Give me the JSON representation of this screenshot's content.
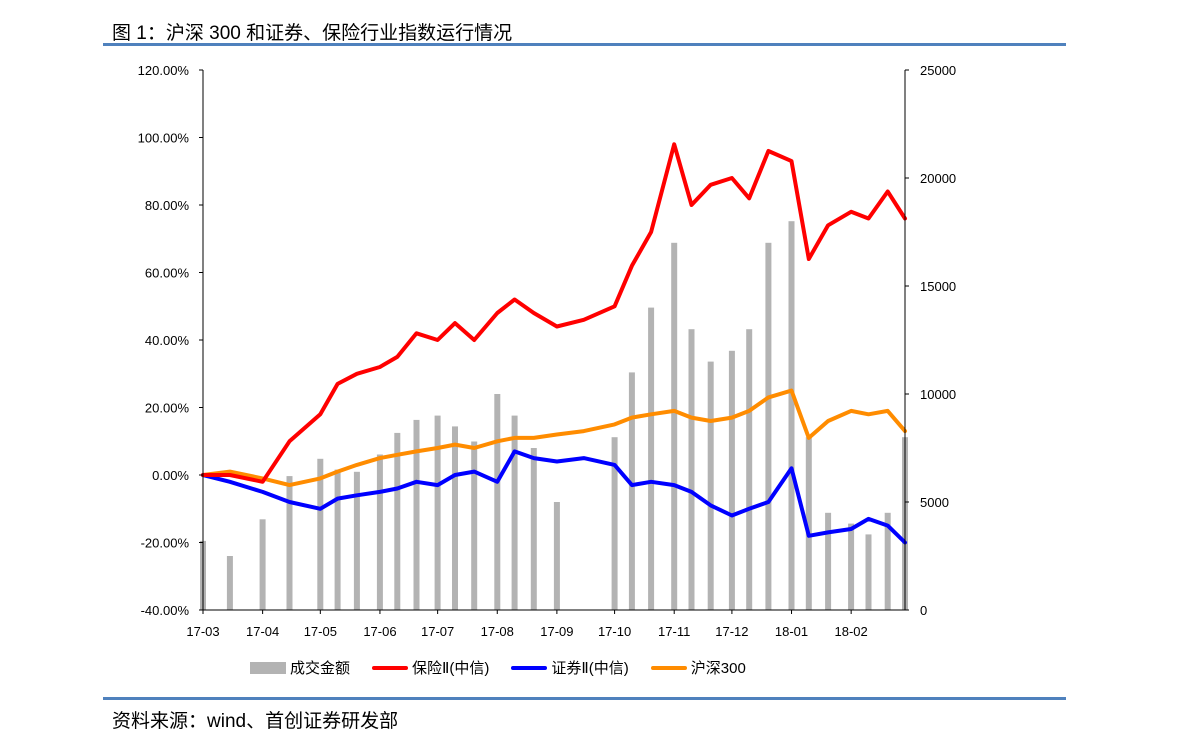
{
  "figure_title": "图 1：沪深 300 和证券、保险行业指数运行情况",
  "source_text": "资料来源：wind、首创证券研发部",
  "colors": {
    "rule": "#4f81bd",
    "volume": "#b3b3b3",
    "insurance": "#ff0000",
    "securities": "#0000ff",
    "hs300": "#ff8c00"
  },
  "chart_data": {
    "type": "line",
    "x_tick_labels": [
      "17-03",
      "17-04",
      "17-05",
      "17-06",
      "17-07",
      "17-08",
      "17-09",
      "17-10",
      "17-11",
      "17-12",
      "18-01",
      "18-02"
    ],
    "y_left_tick_labels": [
      "120.00%",
      "100.00%",
      "80.00%",
      "60.00%",
      "40.00%",
      "20.00%",
      "0.00%",
      "-20.00%",
      "-40.00%"
    ],
    "y_right_tick_labels": [
      "25000",
      "20000",
      "15000",
      "10000",
      "5000",
      "0"
    ],
    "y_left_range": [
      -40,
      120
    ],
    "y_right_range": [
      0,
      25000
    ],
    "legend": [
      "成交金额",
      "保险Ⅱ(中信)",
      "证券Ⅱ(中信)",
      "沪深300"
    ],
    "grid": false,
    "series": [
      {
        "name": "保险Ⅱ(中信)",
        "axis": "left",
        "unit": "%",
        "x": [
          "17-03-01",
          "17-03-15",
          "17-04-01",
          "17-04-15",
          "17-05-01",
          "17-05-10",
          "17-05-20",
          "17-06-01",
          "17-06-10",
          "17-06-20",
          "17-07-01",
          "17-07-10",
          "17-07-20",
          "17-08-01",
          "17-08-10",
          "17-08-20",
          "17-09-01",
          "17-09-15",
          "17-10-01",
          "17-10-10",
          "17-10-20",
          "17-11-01",
          "17-11-10",
          "17-11-20",
          "17-12-01",
          "17-12-10",
          "17-12-20",
          "18-01-01",
          "18-01-10",
          "18-01-20",
          "18-02-01",
          "18-02-10",
          "18-02-20",
          "18-03-01"
        ],
        "values": [
          0,
          0,
          -2,
          10,
          18,
          27,
          30,
          32,
          35,
          42,
          40,
          45,
          40,
          48,
          52,
          48,
          44,
          46,
          50,
          62,
          72,
          98,
          80,
          86,
          88,
          82,
          96,
          93,
          64,
          74,
          78,
          76,
          84,
          76
        ]
      },
      {
        "name": "证券Ⅱ(中信)",
        "axis": "left",
        "unit": "%",
        "x": [
          "17-03-01",
          "17-03-15",
          "17-04-01",
          "17-04-15",
          "17-05-01",
          "17-05-10",
          "17-05-20",
          "17-06-01",
          "17-06-10",
          "17-06-20",
          "17-07-01",
          "17-07-10",
          "17-07-20",
          "17-08-01",
          "17-08-10",
          "17-08-20",
          "17-09-01",
          "17-09-15",
          "17-10-01",
          "17-10-10",
          "17-10-20",
          "17-11-01",
          "17-11-10",
          "17-11-20",
          "17-12-01",
          "17-12-10",
          "17-12-20",
          "18-01-01",
          "18-01-10",
          "18-01-20",
          "18-02-01",
          "18-02-10",
          "18-02-20",
          "18-03-01"
        ],
        "values": [
          0,
          -2,
          -5,
          -8,
          -10,
          -7,
          -6,
          -5,
          -4,
          -2,
          -3,
          0,
          1,
          -2,
          7,
          5,
          4,
          5,
          3,
          -3,
          -2,
          -3,
          -5,
          -9,
          -12,
          -10,
          -8,
          2,
          -18,
          -17,
          -16,
          -13,
          -15,
          -20
        ]
      },
      {
        "name": "沪深300",
        "axis": "left",
        "unit": "%",
        "x": [
          "17-03-01",
          "17-03-15",
          "17-04-01",
          "17-04-15",
          "17-05-01",
          "17-05-10",
          "17-05-20",
          "17-06-01",
          "17-06-10",
          "17-06-20",
          "17-07-01",
          "17-07-10",
          "17-07-20",
          "17-08-01",
          "17-08-10",
          "17-08-20",
          "17-09-01",
          "17-09-15",
          "17-10-01",
          "17-10-10",
          "17-10-20",
          "17-11-01",
          "17-11-10",
          "17-11-20",
          "17-12-01",
          "17-12-10",
          "17-12-20",
          "18-01-01",
          "18-01-10",
          "18-01-20",
          "18-02-01",
          "18-02-10",
          "18-02-20",
          "18-03-01"
        ],
        "values": [
          0,
          1,
          -1,
          -3,
          -1,
          1,
          3,
          5,
          6,
          7,
          8,
          9,
          8,
          10,
          11,
          11,
          12,
          13,
          15,
          17,
          18,
          19,
          17,
          16,
          17,
          19,
          23,
          25,
          11,
          16,
          19,
          18,
          19,
          13
        ]
      },
      {
        "name": "成交金额",
        "axis": "right",
        "type": "bar",
        "x": [
          "17-03-01",
          "17-03-15",
          "17-04-01",
          "17-04-15",
          "17-05-01",
          "17-05-10",
          "17-05-20",
          "17-06-01",
          "17-06-10",
          "17-06-20",
          "17-07-01",
          "17-07-10",
          "17-07-20",
          "17-08-01",
          "17-08-10",
          "17-08-20",
          "17-09-01",
          "17-09-15",
          "17-10-01",
          "17-10-10",
          "17-10-20",
          "17-11-01",
          "17-11-10",
          "17-11-20",
          "17-12-01",
          "17-12-10",
          "17-12-20",
          "18-01-01",
          "18-01-10",
          "18-01-20",
          "18-02-01",
          "18-02-10",
          "18-02-20",
          "18-03-01"
        ],
        "values": [
          3200,
          2500,
          4200,
          6200,
          7000,
          6500,
          6400,
          7200,
          8200,
          8800,
          9000,
          8500,
          7800,
          10000,
          9000,
          7500,
          5000,
          0,
          8000,
          11000,
          14000,
          17000,
          13000,
          11500,
          12000,
          13000,
          17000,
          18000,
          8000,
          4500,
          4000,
          3500,
          4500,
          8000
        ]
      }
    ]
  }
}
